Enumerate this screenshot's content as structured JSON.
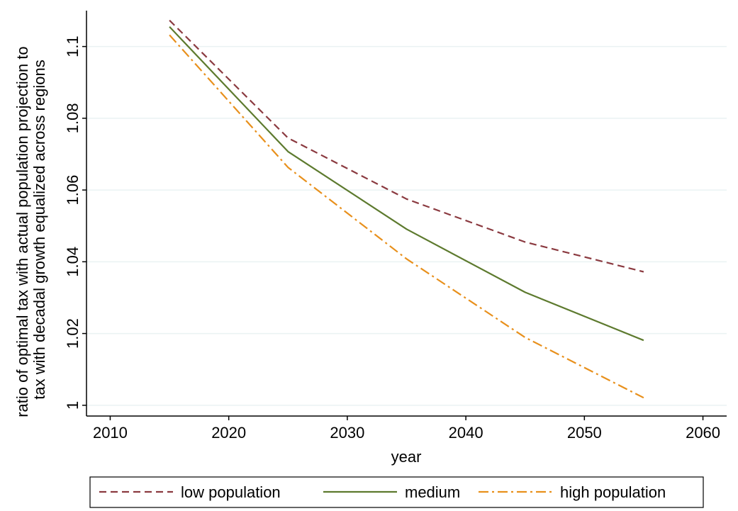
{
  "chart_data": {
    "type": "line",
    "title": "",
    "xlabel": "year",
    "ylabel_lines": [
      "ratio of optimal tax with actual population projection to",
      "tax with decadal growth equalized across regions"
    ],
    "xlim": [
      2008,
      2062
    ],
    "ylim": [
      0.997,
      1.11
    ],
    "xticks": [
      2010,
      2020,
      2030,
      2040,
      2050,
      2060
    ],
    "yticks": [
      1,
      1.02,
      1.04,
      1.06,
      1.08,
      1.1
    ],
    "ytick_labels": [
      "1",
      "1.02",
      "1.04",
      "1.06",
      "1.08",
      "1.1"
    ],
    "grid": true,
    "legend_position": "bottom",
    "series": [
      {
        "name": "low population",
        "color": "#8b3a40",
        "dash": "dashed",
        "x": [
          2015,
          2025,
          2035,
          2045,
          2055
        ],
        "y": [
          1.1073,
          1.0745,
          1.0575,
          1.0455,
          1.0372
        ]
      },
      {
        "name": "medium",
        "color": "#5d7a2e",
        "dash": "solid",
        "x": [
          2015,
          2025,
          2035,
          2045,
          2055
        ],
        "y": [
          1.1055,
          1.0707,
          1.0491,
          1.0315,
          1.0181
        ]
      },
      {
        "name": "high population",
        "color": "#e8901c",
        "dash": "dashdot",
        "x": [
          2015,
          2025,
          2035,
          2045,
          2055
        ],
        "y": [
          1.1032,
          1.0663,
          1.0408,
          1.0189,
          1.0021
        ]
      }
    ]
  }
}
